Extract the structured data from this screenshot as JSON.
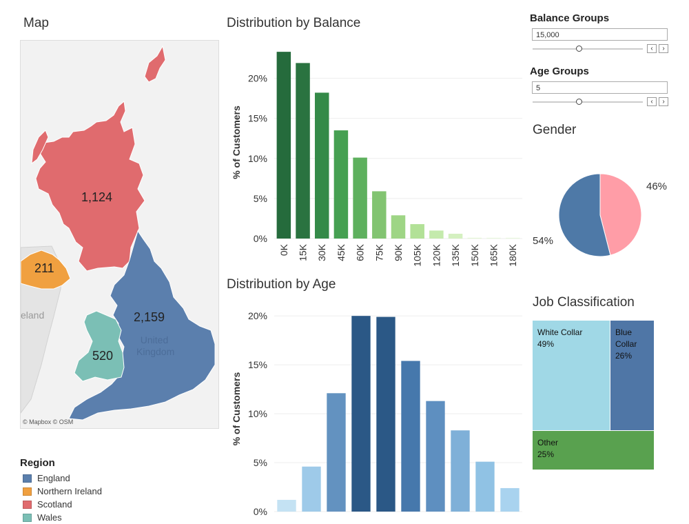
{
  "titles": {
    "map": "Map",
    "balance": "Distribution by Balance",
    "age": "Distribution by Age",
    "gender": "Gender",
    "job": "Job Classification"
  },
  "controls": {
    "balance_groups": {
      "label": "Balance Groups",
      "value": "15,000",
      "slider_fraction": 0.42
    },
    "age_groups": {
      "label": "Age Groups",
      "value": "5",
      "slider_fraction": 0.42
    },
    "prev_icon": "chevron-left-icon",
    "next_icon": "chevron-right-icon"
  },
  "map": {
    "attribution": "© Mapbox © OSM",
    "country_label_line1": "United",
    "country_label_line2": "Kingdom",
    "ireland_label": "eland",
    "regions": [
      {
        "name": "England",
        "value": "2,159",
        "color": "#5b7fad"
      },
      {
        "name": "Northern Ireland",
        "value": "211",
        "color": "#f0a040"
      },
      {
        "name": "Scotland",
        "value": "1,124",
        "color": "#e06b6e"
      },
      {
        "name": "Wales",
        "value": "520",
        "color": "#7bbfb5"
      }
    ]
  },
  "legend": {
    "title": "Region",
    "items": [
      "England",
      "Northern Ireland",
      "Scotland",
      "Wales"
    ]
  },
  "pie_labels": {
    "left": "54%",
    "right": "46%"
  },
  "treemap": [
    {
      "name": "White Collar",
      "pct": "49%",
      "color": "#a0d8e6"
    },
    {
      "name": "Blue Collar",
      "pct": "26%",
      "color": "#4f76a6"
    },
    {
      "name": "Other",
      "pct": "25%",
      "color": "#59a14f"
    }
  ],
  "chart_data": [
    {
      "type": "bar",
      "title": "Distribution by Balance",
      "ylabel": "% of Customers",
      "categories": [
        "0K",
        "15K",
        "30K",
        "45K",
        "60K",
        "75K",
        "90K",
        "105K",
        "120K",
        "135K",
        "150K",
        "165K",
        "180K"
      ],
      "values": [
        23.3,
        21.9,
        18.2,
        13.5,
        10.1,
        5.9,
        2.9,
        1.8,
        1.0,
        0.6,
        0.1,
        0.1,
        0.1
      ],
      "ylim": [
        0,
        24
      ],
      "yticks": [
        "0%",
        "5%",
        "10%",
        "15%",
        "20%"
      ],
      "colors": [
        "#256b3c",
        "#2a7340",
        "#348a48",
        "#46a052",
        "#5eb05e",
        "#82c471",
        "#9ed585",
        "#b2e197",
        "#c4eaac",
        "#d4f0c0",
        "#e3f5d5",
        "#e8f7dd",
        "#e8f7dd"
      ]
    },
    {
      "type": "bar",
      "title": "Distribution by Age",
      "ylabel": "% of Customers",
      "categories": [
        "",
        "",
        "",
        "",
        "",
        "",
        "",
        "",
        "",
        ""
      ],
      "values": [
        1.2,
        4.6,
        12.1,
        20.0,
        19.9,
        15.4,
        11.3,
        8.3,
        5.1,
        2.4
      ],
      "ylim": [
        0,
        21
      ],
      "yticks": [
        "0%",
        "5%",
        "10%",
        "15%",
        "20%"
      ],
      "colors": [
        "#c4e2f3",
        "#9ecae9",
        "#6392c0",
        "#2b5886",
        "#2b5886",
        "#4678ac",
        "#5e8fc0",
        "#7fb0d8",
        "#90c2e4",
        "#a9d3ef"
      ]
    },
    {
      "type": "pie",
      "title": "Gender",
      "values": [
        54,
        46
      ],
      "colors": [
        "#4e79a7",
        "#ff9da7"
      ]
    }
  ]
}
